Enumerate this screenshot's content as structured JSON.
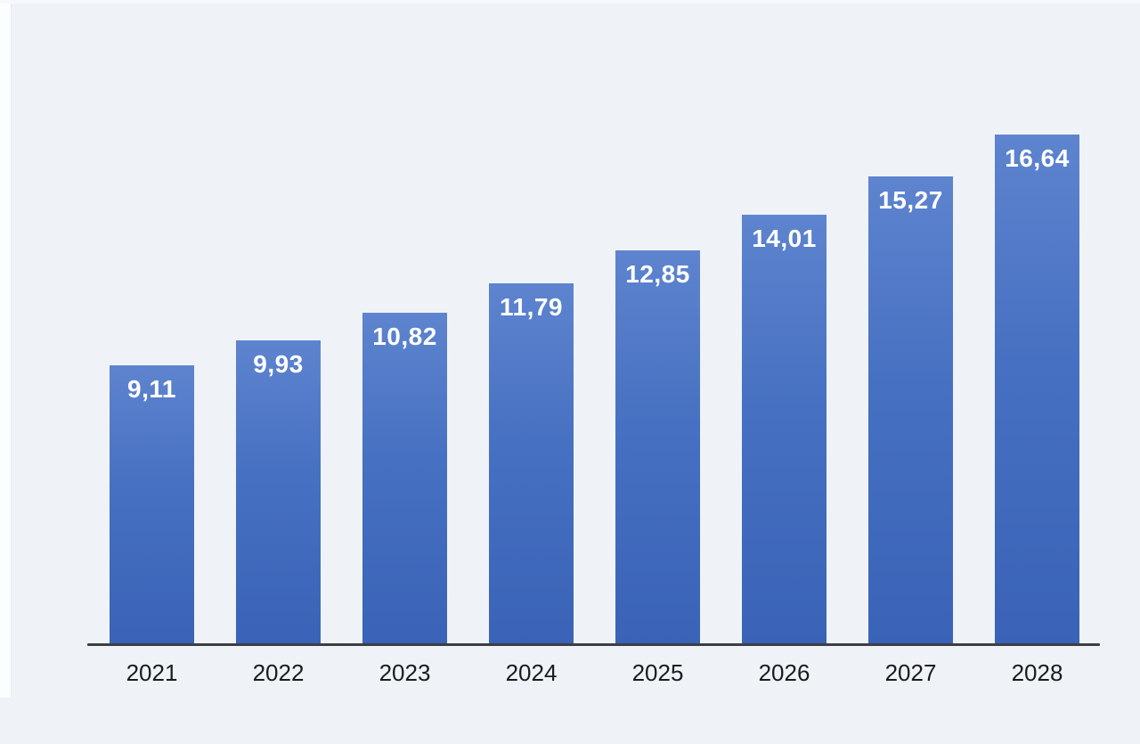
{
  "page": {
    "background": "#eff3f8",
    "left_strip_color": "#fcfdfe"
  },
  "chart_data": {
    "type": "bar",
    "title": "",
    "xlabel": "",
    "ylabel": "",
    "categories": [
      "2021",
      "2022",
      "2023",
      "2024",
      "2025",
      "2026",
      "2027",
      "2028"
    ],
    "values": [
      9.11,
      9.93,
      10.82,
      11.79,
      12.85,
      14.01,
      15.27,
      16.64
    ],
    "value_labels": [
      "9,11",
      "9,93",
      "10,82",
      "11,79",
      "12,85",
      "14,01",
      "15,27",
      "16,64"
    ],
    "value_label_position": "inside-top",
    "decimal_separator": ",",
    "ylim": [
      0,
      20
    ],
    "grid": false,
    "legend": false,
    "colors": {
      "bar_top": "#5e84cf",
      "bar_mid": "#4670c1",
      "bar_bottom": "#3a63b7",
      "value_label": "#ffffff",
      "axis_line": "#3b3f45",
      "tick_label": "#1b1b1b",
      "plot_background": "#eff3f8",
      "edge_strip": "#fcfdfe"
    }
  }
}
